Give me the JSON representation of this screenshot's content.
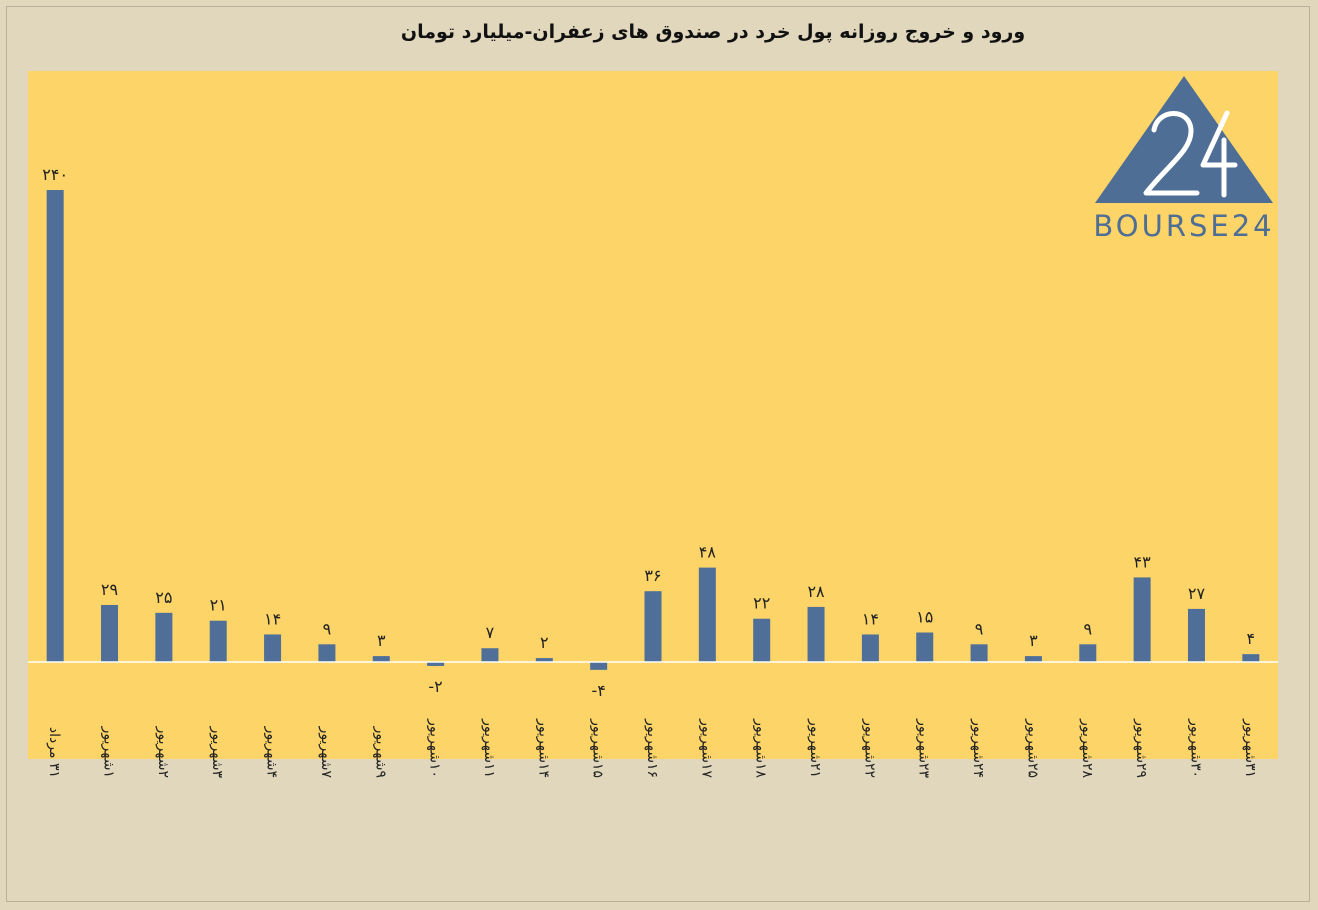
{
  "chart_data": {
    "type": "bar",
    "title": "ورود و خروج روزانه پول خرد در صندوق های زعفران-میلیارد تومان",
    "categories": [
      "۳۱ مرداد",
      "۱شهریور",
      "۲شهریور",
      "۳شهریور",
      "۴شهریور",
      "۷شهریور",
      "۹شهریور",
      "۱۰شهریور",
      "۱۱شهریور",
      "۱۴شهریور",
      "۱۵شهریور",
      "۱۶شهریور",
      "۱۷شهریور",
      "۱۸شهریور",
      "۲۱شهریور",
      "۲۲شهریور",
      "۲۳شهریور",
      "۲۴شهریور",
      "۲۵شهریور",
      "۲۸شهریور",
      "۲۹شهریور",
      "۳۰شهریور",
      "۳۱شهریور"
    ],
    "values": [
      240,
      29,
      25,
      21,
      14,
      9,
      3,
      -2,
      7,
      2,
      -4,
      36,
      48,
      22,
      28,
      14,
      15,
      9,
      3,
      9,
      43,
      27,
      4
    ],
    "value_labels": [
      "۲۴۰",
      "۲۹",
      "۲۵",
      "۲۱",
      "۱۴",
      "۹",
      "۳",
      "-۲",
      "۷",
      "۲",
      "-۴",
      "۳۶",
      "۴۸",
      "۲۲",
      "۲۸",
      "۱۴",
      "۱۵",
      "۹",
      "۳",
      "۹",
      "۴۳",
      "۲۷",
      "۴"
    ],
    "xlabel": "",
    "ylabel": "",
    "ylim": [
      -50,
      300
    ],
    "grid": false,
    "legend": "none",
    "colors": {
      "bar": "#4F6F99",
      "plot_bg": "#FCD467",
      "page_bg": "#E0D7BC",
      "axis": "#ffffff"
    }
  },
  "logo": {
    "text": "BOURSE24",
    "color": "#4E6E96"
  }
}
